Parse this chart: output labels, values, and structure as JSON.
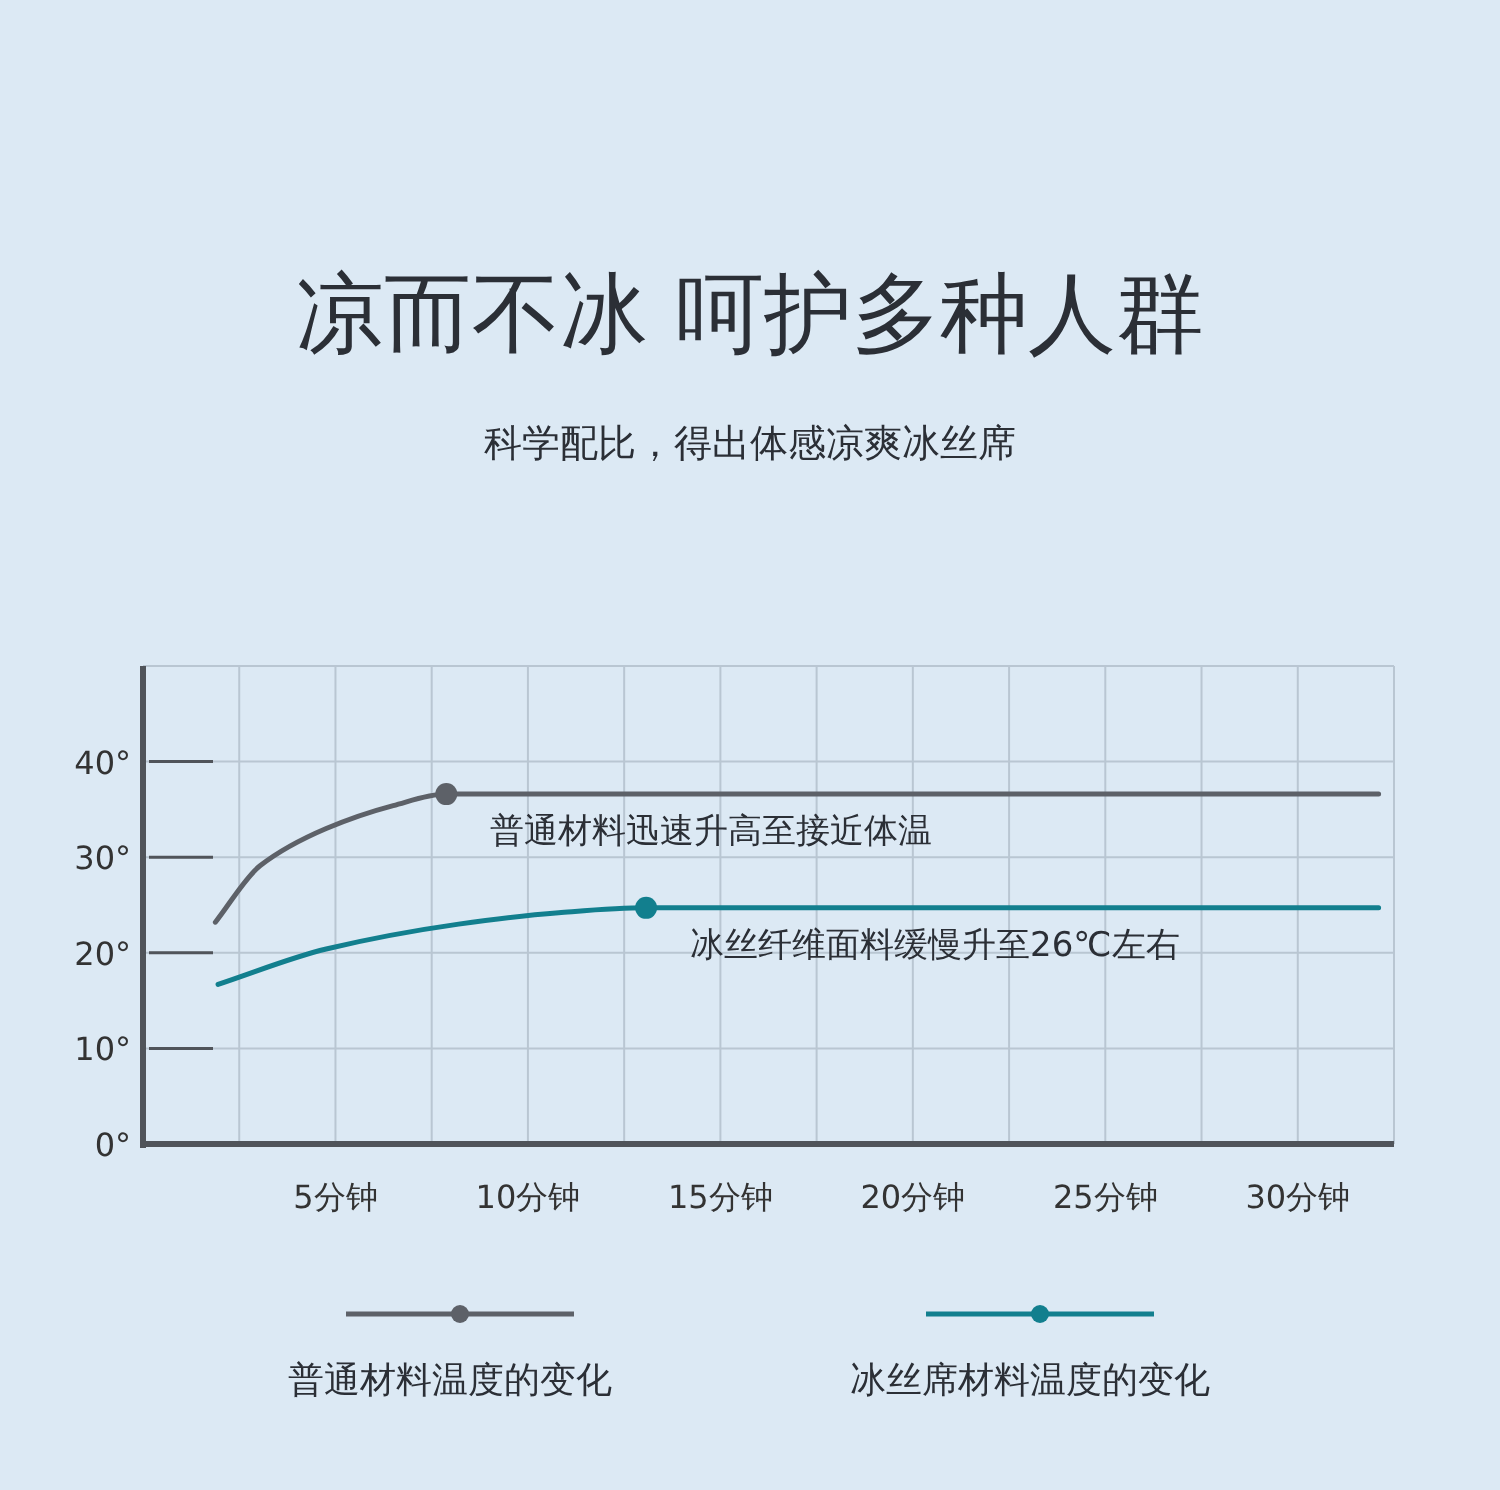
{
  "chart_data": {
    "type": "line",
    "title": "凉而不冰 呵护多种人群",
    "subtitle": "科学配比，得出体感凉爽冰丝席",
    "series": [
      {
        "name": "普通材料温度的变化",
        "color": "#5d6168",
        "x": [
          1.88,
          3.04,
          4.76,
          6.5,
          7.88,
          32.1
        ],
        "values": [
          23.2,
          29.1,
          33,
          35.4,
          36.6,
          36.6
        ]
      },
      {
        "name": "冰丝席材料温度的变化",
        "color": "#127f8e",
        "x": [
          1.95,
          4.76,
          8.2,
          10.8,
          13.07,
          32.1
        ],
        "values": [
          16.7,
          20.4,
          23,
          24.2,
          24.7,
          24.7
        ]
      }
    ],
    "annotations": [
      {
        "text": "普通材料迅速升高至接近体温",
        "x": 7.88,
        "y": 36.6
      },
      {
        "text": "冰丝纤维面料缓慢升至26℃左右",
        "x": 13.07,
        "y": 24.7
      }
    ],
    "xlim": [
      0,
      32.5
    ],
    "xticks": [
      {
        "value": 2.5,
        "label": null
      },
      {
        "value": 5,
        "label": "5分钟"
      },
      {
        "value": 7.5,
        "label": null
      },
      {
        "value": 10,
        "label": "10分钟"
      },
      {
        "value": 12.5,
        "label": null
      },
      {
        "value": 15,
        "label": "15分钟"
      },
      {
        "value": 17.5,
        "label": null
      },
      {
        "value": 20,
        "label": "20分钟"
      },
      {
        "value": 22.5,
        "label": null
      },
      {
        "value": 25,
        "label": "25分钟"
      },
      {
        "value": 27.5,
        "label": null
      },
      {
        "value": 30,
        "label": "30分钟"
      }
    ],
    "ylim": [
      0,
      50
    ],
    "yticks": [
      {
        "value": 0,
        "label": "0°"
      },
      {
        "value": 10,
        "label": "10°"
      },
      {
        "value": 20,
        "label": "20°"
      },
      {
        "value": 30,
        "label": "30°"
      },
      {
        "value": 40,
        "label": "40°"
      }
    ],
    "grid": true,
    "legend": "bottom"
  }
}
